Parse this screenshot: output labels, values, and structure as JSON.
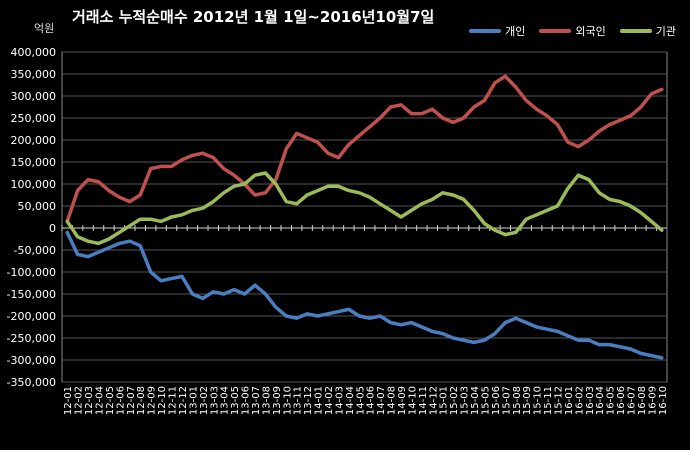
{
  "chart_data": {
    "type": "line",
    "title": "거래소  누적순매수 2012년 1월 1일~2016년10월7일",
    "ylabel": "억원",
    "ylim": [
      -350000,
      400000
    ],
    "yticks": [
      "400,000",
      "350,000",
      "300,000",
      "250,000",
      "200,000",
      "150,000",
      "100,000",
      "50,000",
      "0",
      "-50,000",
      "-100,000",
      "-150,000",
      "-200,000",
      "-250,000",
      "-300,000",
      "-350,000"
    ],
    "categories": [
      "12-01",
      "12-02",
      "12-03",
      "12-04",
      "12-05",
      "12-06",
      "12-07",
      "12-08",
      "12-09",
      "12-10",
      "12-11",
      "12-12",
      "13-01",
      "13-02",
      "13-03",
      "13-04",
      "13-05",
      "13-06",
      "13-07",
      "13-08",
      "13-09",
      "13-10",
      "13-11",
      "13-12",
      "14-01",
      "14-02",
      "14-03",
      "14-04",
      "14-05",
      "14-06",
      "14-07",
      "14-08",
      "14-09",
      "14-10",
      "14-11",
      "14-12",
      "15-01",
      "15-02",
      "15-03",
      "15-04",
      "15-05",
      "15-06",
      "15-07",
      "15-08",
      "15-09",
      "15-10",
      "15-11",
      "15-12",
      "16-01",
      "16-02",
      "16-03",
      "16-04",
      "16-05",
      "16-06",
      "16-07",
      "16-08",
      "16-09",
      "16-10"
    ],
    "grid": true,
    "legend_position": "top-right",
    "series": [
      {
        "name": "개인",
        "color": "#4a7ec2",
        "values": [
          -10000,
          -60000,
          -65000,
          -55000,
          -45000,
          -35000,
          -30000,
          -40000,
          -100000,
          -120000,
          -115000,
          -110000,
          -150000,
          -160000,
          -145000,
          -150000,
          -140000,
          -150000,
          -130000,
          -150000,
          -180000,
          -200000,
          -205000,
          -195000,
          -200000,
          -195000,
          -190000,
          -185000,
          -200000,
          -205000,
          -200000,
          -215000,
          -220000,
          -215000,
          -225000,
          -235000,
          -240000,
          -250000,
          -255000,
          -260000,
          -255000,
          -240000,
          -215000,
          -205000,
          -215000,
          -225000,
          -230000,
          -235000,
          -245000,
          -255000,
          -255000,
          -265000,
          -265000,
          -270000,
          -275000,
          -285000,
          -290000,
          -295000
        ]
      },
      {
        "name": "외국인",
        "color": "#c0504d",
        "values": [
          15000,
          85000,
          110000,
          105000,
          85000,
          70000,
          60000,
          75000,
          135000,
          140000,
          140000,
          155000,
          165000,
          170000,
          160000,
          135000,
          120000,
          100000,
          75000,
          80000,
          110000,
          180000,
          215000,
          205000,
          195000,
          170000,
          160000,
          190000,
          210000,
          230000,
          250000,
          275000,
          280000,
          260000,
          260000,
          270000,
          250000,
          240000,
          250000,
          275000,
          290000,
          330000,
          345000,
          320000,
          290000,
          270000,
          255000,
          235000,
          195000,
          185000,
          200000,
          220000,
          235000,
          245000,
          255000,
          275000,
          305000,
          315000
        ]
      },
      {
        "name": "기관",
        "color": "#9bbb59",
        "values": [
          15000,
          -20000,
          -30000,
          -35000,
          -25000,
          -10000,
          5000,
          20000,
          20000,
          15000,
          25000,
          30000,
          40000,
          45000,
          60000,
          80000,
          95000,
          100000,
          120000,
          125000,
          100000,
          60000,
          55000,
          75000,
          85000,
          95000,
          95000,
          85000,
          80000,
          70000,
          55000,
          40000,
          25000,
          40000,
          55000,
          65000,
          80000,
          75000,
          65000,
          40000,
          10000,
          -5000,
          -15000,
          -10000,
          20000,
          30000,
          40000,
          50000,
          90000,
          120000,
          110000,
          80000,
          65000,
          60000,
          50000,
          35000,
          15000,
          -5000
        ]
      }
    ]
  }
}
